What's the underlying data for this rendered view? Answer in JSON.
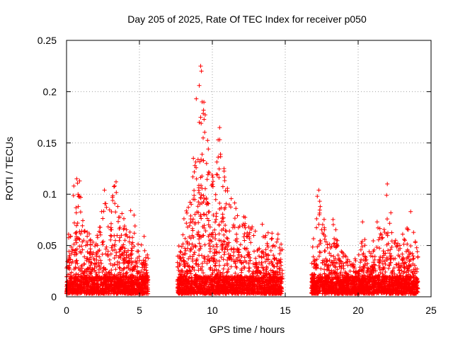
{
  "chart_data": {
    "type": "scatter",
    "title": "Day 205 of 2025, Rate Of TEC Index for receiver p050",
    "xlabel": "GPS time / hours",
    "ylabel": "ROTI / TECUs",
    "xlim": [
      0,
      25
    ],
    "ylim": [
      0,
      0.25
    ],
    "xticks": [
      0,
      5,
      10,
      15,
      20,
      25
    ],
    "yticks": [
      0,
      0.05,
      0.1,
      0.15,
      0.2,
      0.25
    ],
    "xtick_labels": [
      "0",
      "5",
      "10",
      "15",
      "20",
      "25"
    ],
    "ytick_labels": [
      "0",
      "0.05",
      "0.1",
      "0.15",
      "0.2",
      "0.25"
    ],
    "grid": true,
    "legend": "none",
    "marker": "plus",
    "color": "#ff0000",
    "segments": [
      {
        "start": 0.0,
        "end": 5.6
      },
      {
        "start": 7.6,
        "end": 14.8
      },
      {
        "start": 16.8,
        "end": 24.1
      }
    ],
    "envelope": [
      [
        0.0,
        0.06
      ],
      [
        0.3,
        0.07
      ],
      [
        0.5,
        0.1
      ],
      [
        0.8,
        0.11
      ],
      [
        1.0,
        0.1
      ],
      [
        1.3,
        0.06
      ],
      [
        1.6,
        0.06
      ],
      [
        2.0,
        0.06
      ],
      [
        2.3,
        0.08
      ],
      [
        2.6,
        0.09
      ],
      [
        3.0,
        0.09
      ],
      [
        3.3,
        0.11
      ],
      [
        3.7,
        0.09
      ],
      [
        4.0,
        0.07
      ],
      [
        4.3,
        0.06
      ],
      [
        4.6,
        0.08
      ],
      [
        5.0,
        0.04
      ],
      [
        5.3,
        0.06
      ],
      [
        5.6,
        0.04
      ],
      [
        7.6,
        0.04
      ],
      [
        8.0,
        0.07
      ],
      [
        8.5,
        0.1
      ],
      [
        8.9,
        0.14
      ],
      [
        9.2,
        0.21
      ],
      [
        9.5,
        0.18
      ],
      [
        9.8,
        0.13
      ],
      [
        10.1,
        0.12
      ],
      [
        10.5,
        0.16
      ],
      [
        11.0,
        0.11
      ],
      [
        11.5,
        0.09
      ],
      [
        12.0,
        0.08
      ],
      [
        12.5,
        0.07
      ],
      [
        13.0,
        0.06
      ],
      [
        13.5,
        0.07
      ],
      [
        14.0,
        0.06
      ],
      [
        14.5,
        0.06
      ],
      [
        14.8,
        0.05
      ],
      [
        16.8,
        0.04
      ],
      [
        17.1,
        0.07
      ],
      [
        17.3,
        0.1
      ],
      [
        17.6,
        0.08
      ],
      [
        18.0,
        0.06
      ],
      [
        18.3,
        0.08
      ],
      [
        18.6,
        0.05
      ],
      [
        19.0,
        0.04
      ],
      [
        19.5,
        0.03
      ],
      [
        20.0,
        0.04
      ],
      [
        20.4,
        0.07
      ],
      [
        20.8,
        0.04
      ],
      [
        21.3,
        0.07
      ],
      [
        21.7,
        0.06
      ],
      [
        22.0,
        0.11
      ],
      [
        22.4,
        0.06
      ],
      [
        22.8,
        0.05
      ],
      [
        23.1,
        0.06
      ],
      [
        23.5,
        0.08
      ],
      [
        23.8,
        0.06
      ],
      [
        24.1,
        0.04
      ]
    ],
    "baseline_range": [
      0.003,
      0.02
    ],
    "peak_points": [
      [
        0.7,
        0.115
      ],
      [
        0.9,
        0.113
      ],
      [
        0.5,
        0.108
      ],
      [
        0.8,
        0.088
      ],
      [
        2.6,
        0.104
      ],
      [
        3.4,
        0.112
      ],
      [
        3.3,
        0.108
      ],
      [
        4.4,
        0.084
      ],
      [
        9.2,
        0.225
      ],
      [
        9.25,
        0.22
      ],
      [
        9.1,
        0.206
      ],
      [
        8.9,
        0.193
      ],
      [
        9.3,
        0.19
      ],
      [
        9.4,
        0.182
      ],
      [
        9.2,
        0.175
      ],
      [
        9.1,
        0.17
      ],
      [
        10.5,
        0.165
      ],
      [
        10.4,
        0.153
      ],
      [
        8.7,
        0.135
      ],
      [
        9.6,
        0.13
      ],
      [
        10.8,
        0.125
      ],
      [
        12.5,
        0.068
      ],
      [
        17.3,
        0.104
      ],
      [
        22.0,
        0.11
      ],
      [
        21.95,
        0.099
      ],
      [
        23.6,
        0.083
      ],
      [
        17.2,
        0.098
      ],
      [
        20.3,
        0.073
      ],
      [
        21.3,
        0.073
      ]
    ]
  }
}
